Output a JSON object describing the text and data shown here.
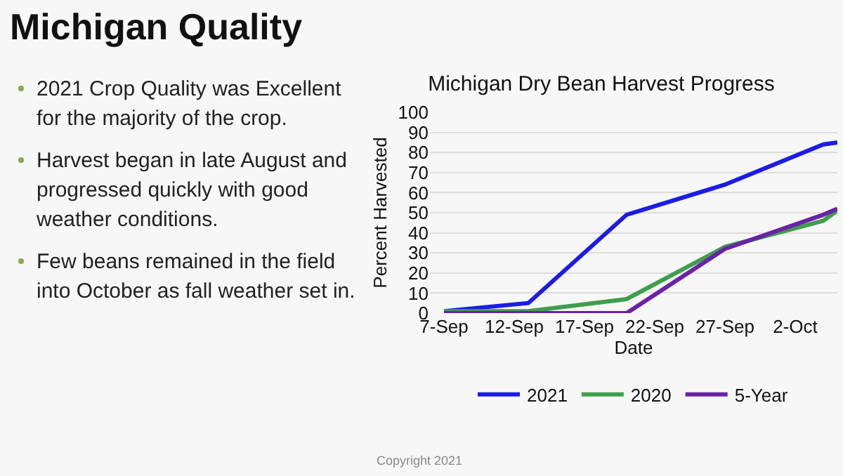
{
  "chart_data": [
    {
      "type": "other",
      "title": "Michigan Quality",
      "annotations": [
        "2021 Crop Quality was Excellent for the majority of the crop.",
        "Harvest began in late August and progressed quickly with good weather conditions.",
        "Few beans remained in the field into October as fall weather set in.",
        "Copyright 2021"
      ]
    },
    {
      "type": "line",
      "title": "Michigan Dry Bean Harvest Progress",
      "xlabel": "Date",
      "ylabel": "Percent Harvested",
      "x": [
        "--09-07",
        "--09-13",
        "--09-20",
        "--09-27",
        "--10-04",
        "--10-05"
      ],
      "series": [
        {
          "name": "2021",
          "color": "#1c1ce6",
          "values": [
            1,
            5,
            49,
            64,
            84,
            85
          ]
        },
        {
          "name": "2020",
          "color": "#3f9e4d",
          "values": [
            1,
            1,
            7,
            33,
            46,
            51
          ]
        },
        {
          "name": "5-Year",
          "color": "#6a22a8",
          "values": [
            0,
            0,
            0,
            32,
            49,
            52
          ]
        }
      ],
      "xlim": [
        "--09-06",
        "--10-05"
      ],
      "xticks": [
        {
          "value": "--09-07",
          "label": "7-Sep"
        },
        {
          "value": "--09-12",
          "label": "12-Sep"
        },
        {
          "value": "--09-17",
          "label": "17-Sep"
        },
        {
          "value": "--09-22",
          "label": "22-Sep"
        },
        {
          "value": "--09-27",
          "label": "27-Sep"
        },
        {
          "value": "--10-02",
          "label": "2-Oct"
        }
      ],
      "ylim": [
        0,
        100
      ],
      "yticks": [
        0,
        10,
        20,
        30,
        40,
        50,
        60,
        70,
        80,
        90,
        100
      ],
      "grid": "y",
      "legend": "bottom",
      "marker": "none",
      "line_style": "solid"
    }
  ]
}
